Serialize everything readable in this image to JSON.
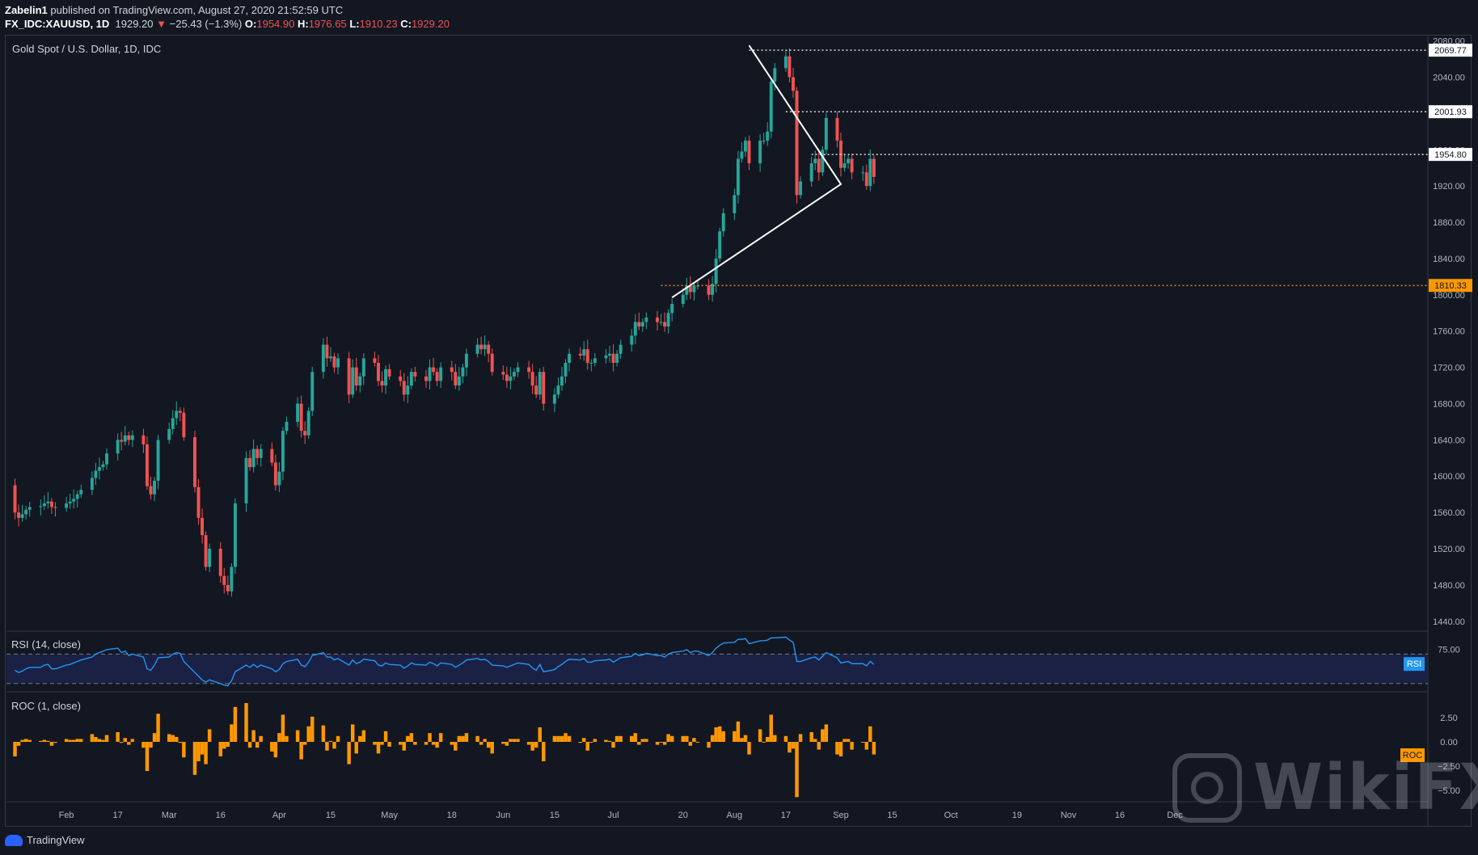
{
  "header": {
    "author": "Zabelin1",
    "published": "published on TradingView.com, August 27, 2020 21:52:59 UTC",
    "symbol": "FX_IDC:XAUUSD, 1D",
    "last": "1929.20",
    "change_arrow": "▼",
    "change": "−25.43 (−1.3%)",
    "o_label": "O:",
    "o_val": "1954.90",
    "h_label": "H:",
    "h_val": "1976.65",
    "l_label": "L:",
    "l_val": "1910.23",
    "c_label": "C:",
    "c_val": "1929.20"
  },
  "panes": {
    "main_title": "Gold Spot / U.S. Dollar, 1D, IDC",
    "rsi_title": "RSI (14, close)",
    "roc_title": "ROC (1, close)"
  },
  "footer": {
    "brand": "TradingView",
    "watermark": "WikiFX"
  },
  "colors": {
    "background": "#131722",
    "up": "#26a69a",
    "down": "#ef5350",
    "rsi_line": "#2196f3",
    "rsi_band": "#1a2145",
    "roc_bar": "#ff9800",
    "support_line": "#ff9800",
    "grid_text": "#b2b5be"
  },
  "chart_data": [
    {
      "type": "candlestick",
      "title": "Gold Spot / U.S. Dollar, 1D, IDC",
      "x_ticks": [
        "Feb",
        "17",
        "Mar",
        "16",
        "Apr",
        "15",
        "May",
        "18",
        "Jun",
        "15",
        "Jul",
        "20",
        "Aug",
        "17",
        "Sep",
        "15",
        "Oct",
        "19",
        "Nov",
        "16",
        "Dec"
      ],
      "y_ticks": [
        1440,
        1480,
        1520,
        1560,
        1600,
        1640,
        1680,
        1720,
        1760,
        1800,
        1840,
        1880,
        1920,
        1960,
        2000,
        2040,
        2080
      ],
      "ylim": [
        1430,
        2085
      ],
      "price_lines": [
        {
          "label": "2069.77",
          "value": 2069.77,
          "style": "dotted-white"
        },
        {
          "label": "2001.93",
          "value": 2001.93,
          "style": "dotted-white"
        },
        {
          "label": "1954.80",
          "value": 1954.8,
          "style": "dotted-white"
        },
        {
          "label": "1810.33",
          "value": 1810.33,
          "style": "dotted-orange"
        }
      ],
      "triangle": {
        "apex_top": {
          "date": "Aug 7",
          "price": 2075
        },
        "apex_right": {
          "date": "Sep 1",
          "price": 1922
        },
        "base_left": {
          "date": "Jul 17",
          "price": 1797
        }
      },
      "closes": [
        1560,
        1563,
        1558,
        1565,
        1572,
        1578,
        1575,
        1580,
        1575,
        1582,
        1586,
        1590,
        1560,
        1554,
        1558,
        1563,
        1566,
        1567,
        1570,
        1572,
        1566,
        1565,
        1570,
        1572,
        1575,
        1580,
        1585,
        1598,
        1606,
        1610,
        1613,
        1625,
        1640,
        1638,
        1645,
        1640,
        1645,
        1635,
        1589,
        1580,
        1595,
        1640,
        1652,
        1664,
        1672,
        1670,
        1643,
        1588,
        1554,
        1535,
        1500,
        1520,
        1490,
        1480,
        1473,
        1500,
        1570,
        1620,
        1610,
        1630,
        1620,
        1630,
        1615,
        1590,
        1605,
        1650,
        1660,
        1680,
        1650,
        1645,
        1672,
        1715,
        1745,
        1730,
        1732,
        1720,
        1730,
        1690,
        1720,
        1700,
        1710,
        1730,
        1725,
        1705,
        1700,
        1718,
        1710,
        1705,
        1690,
        1700,
        1715,
        1710,
        1705,
        1720,
        1715,
        1705,
        1720,
        1715,
        1700,
        1710,
        1720,
        1735,
        1745,
        1740,
        1745,
        1735,
        1715,
        1712,
        1705,
        1710,
        1715,
        1720,
        1715,
        1700,
        1690,
        1715,
        1680,
        1690,
        1700,
        1710,
        1725,
        1735,
        1733,
        1740,
        1725,
        1725,
        1730,
        1733,
        1735,
        1725,
        1735,
        1745,
        1755,
        1770,
        1765,
        1770,
        1775,
        1770,
        1770,
        1765,
        1780,
        1790,
        1800,
        1810,
        1803,
        1810,
        1810,
        1800,
        1812,
        1840,
        1870,
        1890,
        1910,
        1950,
        1958,
        1970,
        1945,
        1970,
        1970,
        1980,
        2035,
        2050,
        2063,
        2040,
        2025,
        1910,
        1925,
        1945,
        1950,
        1935,
        1960,
        1995,
        1970,
        1940,
        1945,
        1950,
        1935,
        1935,
        1920,
        1950,
        1930
      ],
      "rsi": [
        52,
        55,
        50,
        55,
        57,
        58,
        55,
        58,
        52,
        57,
        59,
        60,
        48,
        45,
        47,
        50,
        52,
        52,
        55,
        56,
        50,
        50,
        55,
        56,
        58,
        60,
        62,
        66,
        70,
        72,
        74,
        76,
        78,
        72,
        74,
        68,
        70,
        66,
        50,
        48,
        55,
        65,
        66,
        70,
        72,
        71,
        60,
        45,
        40,
        35,
        32,
        35,
        30,
        28,
        27,
        34,
        46,
        55,
        52,
        56,
        52,
        55,
        50,
        46,
        49,
        57,
        60,
        63,
        55,
        53,
        59,
        68,
        72,
        66,
        66,
        62,
        64,
        55,
        62,
        57,
        59,
        63,
        61,
        55,
        54,
        58,
        56,
        55,
        51,
        54,
        58,
        56,
        55,
        59,
        57,
        54,
        58,
        56,
        52,
        55,
        58,
        62,
        64,
        62,
        63,
        60,
        55,
        54,
        52,
        54,
        56,
        58,
        56,
        51,
        48,
        56,
        46,
        49,
        53,
        56,
        60,
        63,
        62,
        64,
        59,
        59,
        61,
        62,
        63,
        59,
        62,
        65,
        67,
        71,
        68,
        69,
        71,
        68,
        68,
        66,
        70,
        72,
        74,
        76,
        72,
        74,
        74,
        68,
        72,
        78,
        82,
        85,
        86,
        90,
        90,
        91,
        84,
        88,
        88,
        89,
        92,
        92,
        93,
        89,
        86,
        60,
        60,
        65,
        66,
        62,
        67,
        72,
        65,
        58,
        59,
        60,
        57,
        57,
        54,
        60,
        56
      ],
      "roc": [
        0.3,
        0.2,
        -0.3,
        0.4,
        0.5,
        0.4,
        -0.2,
        0.3,
        -0.3,
        0.4,
        0.3,
        0.3,
        -1.5,
        -0.4,
        0.2,
        0.3,
        0.2,
        0.1,
        0.2,
        0.1,
        -0.4,
        -0.1,
        0.3,
        0.2,
        0.2,
        0.3,
        0.3,
        0.8,
        0.5,
        0.3,
        0.2,
        0.7,
        1.0,
        -0.1,
        0.4,
        -0.3,
        0.3,
        -0.6,
        -3.0,
        -0.6,
        0.9,
        2.9,
        0.8,
        0.7,
        0.5,
        -0.1,
        -1.6,
        -3.4,
        -2.0,
        -1.3,
        -2.3,
        1.3,
        -1.5,
        -0.7,
        -0.5,
        1.8,
        3.6,
        4.0,
        -0.6,
        1.2,
        -0.6,
        0.6,
        -1.0,
        -1.6,
        0.9,
        2.8,
        0.6,
        1.2,
        -1.8,
        -0.3,
        1.6,
        2.6,
        1.7,
        -0.9,
        0.1,
        -0.7,
        0.6,
        -2.3,
        1.8,
        -1.2,
        0.6,
        1.2,
        -0.3,
        -1.2,
        -0.3,
        1.1,
        -0.5,
        -0.3,
        -0.9,
        0.6,
        0.9,
        -0.3,
        -0.3,
        0.9,
        -0.3,
        -0.6,
        0.9,
        -0.3,
        -0.9,
        0.6,
        0.6,
        0.9,
        0.6,
        -0.3,
        0.3,
        -0.6,
        -1.2,
        -0.2,
        -0.4,
        0.3,
        0.3,
        0.3,
        -0.3,
        -0.9,
        -0.6,
        1.5,
        -2.0,
        0.6,
        0.6,
        0.6,
        0.9,
        0.6,
        -0.1,
        0.4,
        -0.9,
        0.0,
        0.3,
        0.2,
        0.1,
        -0.6,
        0.6,
        0.6,
        0.6,
        0.9,
        -0.3,
        0.3,
        0.3,
        -0.3,
        0.0,
        -0.3,
        0.8,
        0.6,
        0.6,
        0.6,
        -0.4,
        0.4,
        0.0,
        -0.6,
        0.7,
        1.5,
        1.6,
        1.1,
        1.1,
        2.1,
        0.4,
        0.7,
        -1.3,
        1.3,
        0.0,
        0.5,
        2.8,
        0.7,
        0.6,
        -1.1,
        -0.7,
        -5.7,
        0.8,
        1.0,
        0.3,
        -0.8,
        1.3,
        1.8,
        -1.3,
        -1.5,
        0.3,
        0.3,
        -0.8,
        0.0,
        -0.8,
        1.6,
        -1.3
      ],
      "rsi_ticks": [
        "75.00"
      ],
      "roc_ticks": [
        "2.50",
        "0.00",
        "−2.50",
        "−5.00"
      ],
      "rsi_tag": "RSI",
      "roc_tag": "ROC"
    }
  ]
}
